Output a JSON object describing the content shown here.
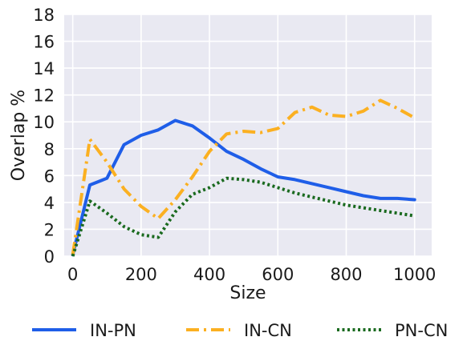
{
  "chart_data": {
    "type": "line",
    "title": "",
    "xlabel": "Size",
    "ylabel": "Overlap %",
    "xlim": [
      -25,
      1050
    ],
    "ylim": [
      0,
      18
    ],
    "xticks": [
      0,
      200,
      400,
      600,
      800,
      1000
    ],
    "yticks": [
      0,
      2,
      4,
      6,
      8,
      10,
      12,
      14,
      16,
      18
    ],
    "grid": true,
    "legend_position": "bottom",
    "background_color": "#e9e9f2",
    "grid_color": "#ffffff",
    "series": [
      {
        "name": "IN-PN",
        "color": "#1f5ee8",
        "style": "solid",
        "x": [
          0,
          50,
          100,
          150,
          200,
          250,
          300,
          350,
          400,
          450,
          500,
          550,
          600,
          650,
          700,
          750,
          800,
          850,
          900,
          950,
          1000
        ],
        "y": [
          0.1,
          5.3,
          5.8,
          8.3,
          9.0,
          9.4,
          10.1,
          9.7,
          8.8,
          7.8,
          7.2,
          6.5,
          5.9,
          5.7,
          5.4,
          5.1,
          4.8,
          4.5,
          4.3,
          4.3,
          4.2
        ]
      },
      {
        "name": "IN-CN",
        "color": "#fbb021",
        "style": "dashdot",
        "x": [
          0,
          50,
          100,
          150,
          200,
          250,
          300,
          350,
          400,
          450,
          500,
          550,
          600,
          650,
          700,
          750,
          800,
          850,
          900,
          950,
          1000
        ],
        "y": [
          0.1,
          8.7,
          7.0,
          5.0,
          3.7,
          2.8,
          4.2,
          5.9,
          7.8,
          9.1,
          9.3,
          9.2,
          9.5,
          10.7,
          11.1,
          10.5,
          10.4,
          10.8,
          11.6,
          11.0,
          10.3
        ]
      },
      {
        "name": "PN-CN",
        "color": "#1a6a1f",
        "style": "dotted",
        "x": [
          0,
          50,
          100,
          150,
          200,
          250,
          300,
          350,
          400,
          450,
          500,
          550,
          600,
          650,
          700,
          750,
          800,
          850,
          900,
          950,
          1000
        ],
        "y": [
          0.0,
          4.1,
          3.2,
          2.2,
          1.6,
          1.4,
          3.3,
          4.6,
          5.1,
          5.8,
          5.7,
          5.5,
          5.1,
          4.7,
          4.4,
          4.1,
          3.8,
          3.6,
          3.4,
          3.2,
          3.0
        ]
      }
    ]
  }
}
